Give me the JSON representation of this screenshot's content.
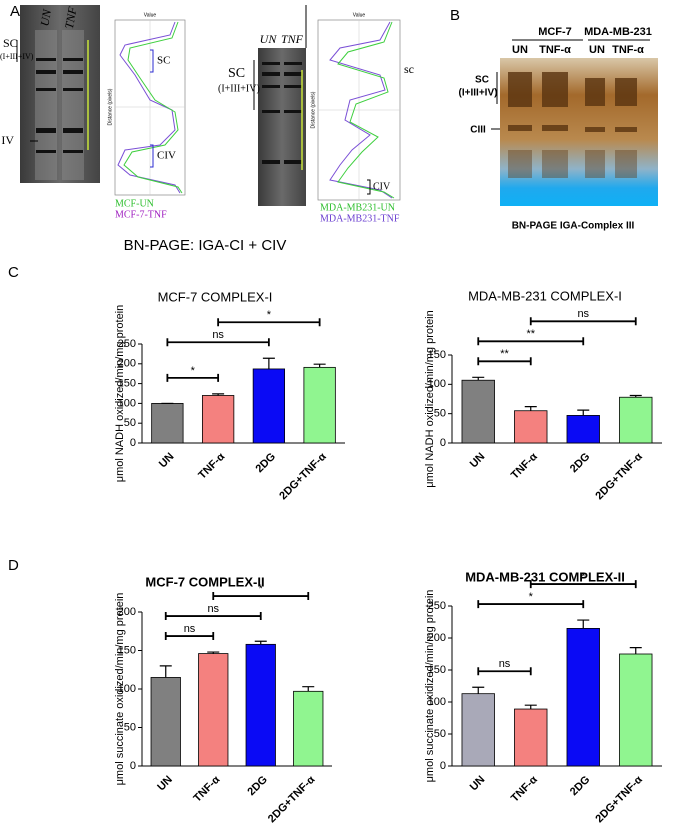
{
  "figure": {
    "panel_labels": [
      "A",
      "B",
      "C",
      "D"
    ],
    "gel_a1": {
      "lanes": [
        "UN",
        "TNF"
      ],
      "sc": "SC",
      "sc_sub": "(I+III+IV)",
      "iv": "IV"
    },
    "plot_a1": {
      "axis_top": "Value",
      "axis_side": "Distance (pixels)",
      "sc": "SC",
      "civ": "CIV",
      "legend": [
        "MCF-UN",
        "MCF-7-TNF"
      ]
    },
    "gel_a2": {
      "lanes": [
        "UN",
        "TNF"
      ],
      "sc": "SC",
      "sc_sub": "(I+III+IV)"
    },
    "plot_a2": {
      "axis_top": "Value",
      "axis_side": "Distance (pixels)",
      "sc": "sc",
      "civ": "CIV",
      "legend": [
        "MDA-MB231-UN",
        "MDA-MB231-TNF"
      ]
    },
    "caption_a": "BN-PAGE: IGA-CI + CIV",
    "gel_b": {
      "groups": [
        "MCF-7",
        "MDA-MB-231"
      ],
      "lanes": [
        "UN",
        "TNF-α",
        "UN",
        "TNF-α"
      ],
      "sc": "SC",
      "sc_sub": "(I+III+IV)",
      "ciii": "CIII"
    },
    "caption_b": "BN-PAGE IGA-Complex III"
  },
  "chart_data": [
    {
      "type": "bar",
      "title": "MCF-7 COMPLEX-I",
      "title_bold": false,
      "y_label": "μmol NADH oxidized/min/mg protein",
      "categories": [
        "UN",
        "TNF-α",
        "2DG",
        "2DG+TNF-α"
      ],
      "values": [
        100,
        120,
        187,
        191
      ],
      "errors": [
        0,
        4,
        27,
        8
      ],
      "colors": [
        "#808080",
        "#f4817f",
        "#0a0af5",
        "#90f590"
      ],
      "ylim": [
        0,
        250
      ],
      "yticks": [
        0,
        50,
        100,
        150,
        200,
        250
      ],
      "comparisons": [
        {
          "between": [
            0,
            1
          ],
          "label": "*"
        },
        {
          "between": [
            0,
            2
          ],
          "label": "ns"
        },
        {
          "between": [
            1,
            3
          ],
          "label": "*"
        }
      ]
    },
    {
      "type": "bar",
      "title": "MDA-MB-231 COMPLEX-I",
      "title_bold": false,
      "y_label": "μmol NADH oxidized/min/mg protein",
      "categories": [
        "UN",
        "TNF-α",
        "2DG",
        "2DG+TNF-α"
      ],
      "values": [
        107,
        55,
        47,
        78
      ],
      "errors": [
        5,
        7,
        9,
        3
      ],
      "colors": [
        "#808080",
        "#f4817f",
        "#0a0af5",
        "#90f590"
      ],
      "ylim": [
        0,
        150
      ],
      "yticks": [
        0,
        50,
        100,
        150
      ],
      "comparisons": [
        {
          "between": [
            0,
            1
          ],
          "label": "**"
        },
        {
          "between": [
            0,
            2
          ],
          "label": "**"
        },
        {
          "between": [
            1,
            3
          ],
          "label": "ns"
        }
      ]
    },
    {
      "type": "bar",
      "title": "MCF-7 COMPLEX-II",
      "title_bold": true,
      "y_label": "μmol succinate oxidized/min/mg protein",
      "categories": [
        "UN",
        "TNF-α",
        "2DG",
        "2DG+TNF-α"
      ],
      "values": [
        115,
        146,
        158,
        97
      ],
      "errors": [
        15,
        2,
        4,
        6
      ],
      "colors": [
        "#808080",
        "#f4817f",
        "#0a0af5",
        "#90f590"
      ],
      "ylim": [
        0,
        200
      ],
      "yticks": [
        0,
        50,
        100,
        150,
        200
      ],
      "comparisons": [
        {
          "between": [
            0,
            1
          ],
          "label": "ns"
        },
        {
          "between": [
            0,
            2
          ],
          "label": "ns"
        },
        {
          "between": [
            1,
            3
          ],
          "label": "*"
        }
      ]
    },
    {
      "type": "bar",
      "title": "MDA-MB-231 COMPLEX-II",
      "title_bold": true,
      "y_label": "μmol succinate oxidized/min/mg protein",
      "categories": [
        "UN",
        "TNF-α",
        "2DG",
        "2DG+TNF-α"
      ],
      "values": [
        113,
        89,
        215,
        175
      ],
      "errors": [
        10,
        6,
        13,
        10
      ],
      "colors": [
        "#a9a9b8",
        "#f4817f",
        "#0a0af5",
        "#90f590"
      ],
      "ylim": [
        0,
        250
      ],
      "yticks": [
        0,
        50,
        100,
        150,
        200,
        250
      ],
      "comparisons": [
        {
          "between": [
            0,
            1
          ],
          "label": "ns"
        },
        {
          "between": [
            0,
            2
          ],
          "label": "*"
        },
        {
          "between": [
            1,
            3
          ],
          "label": "*"
        }
      ]
    }
  ]
}
